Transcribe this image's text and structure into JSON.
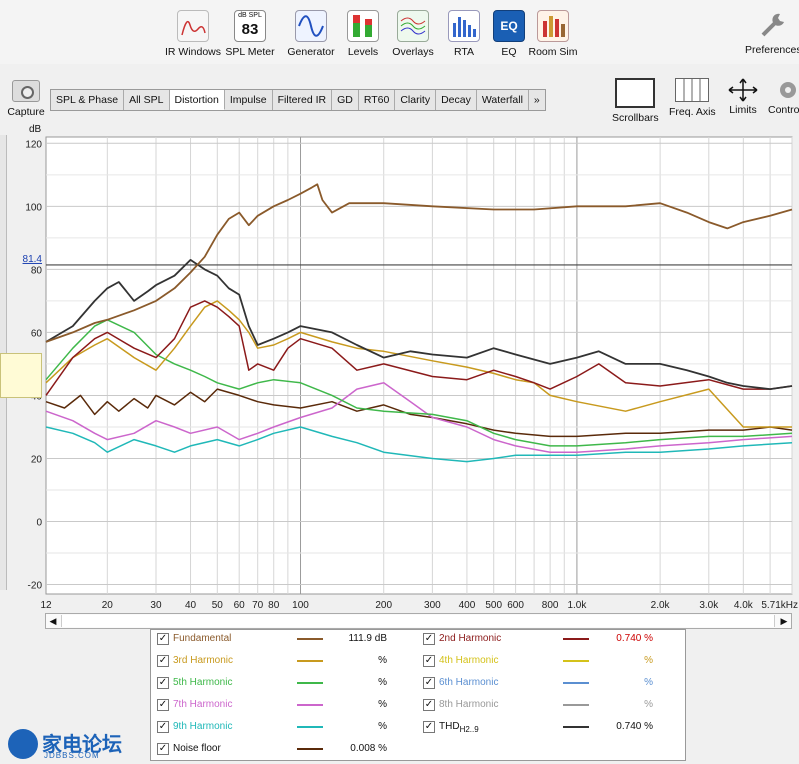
{
  "toolbar": {
    "tools": [
      {
        "label": "IR Windows",
        "icon": "ir-windows-icon"
      },
      {
        "label": "SPL Meter",
        "icon": "spl-meter-icon",
        "meter_unit": "dB SPL",
        "meter_value": "83"
      },
      {
        "label": "Generator",
        "icon": "sine-wave-icon"
      },
      {
        "label": "Levels",
        "icon": "level-bars-icon"
      },
      {
        "label": "Overlays",
        "icon": "overlays-icon"
      },
      {
        "label": "RTA",
        "icon": "rta-icon"
      },
      {
        "label": "EQ",
        "icon": "eq-icon",
        "badge": "EQ"
      },
      {
        "label": "Room Sim",
        "icon": "room-sim-icon"
      }
    ],
    "preferences_label": "Preferences"
  },
  "capture_label": "Capture",
  "tabs": [
    {
      "label": "SPL & Phase"
    },
    {
      "label": "All SPL"
    },
    {
      "label": "Distortion",
      "active": true
    },
    {
      "label": "Impulse"
    },
    {
      "label": "Filtered IR"
    },
    {
      "label": "GD"
    },
    {
      "label": "RT60"
    },
    {
      "label": "Clarity"
    },
    {
      "label": "Decay"
    },
    {
      "label": "Waterfall"
    },
    {
      "label": "»"
    }
  ],
  "right_tools": {
    "scrollbars": "Scrollbars",
    "freq_axis": "Freq. Axis",
    "limits": "Limits",
    "controls": "Controls"
  },
  "chart_data": {
    "type": "line",
    "ylabel": "dB",
    "ylim": [
      -23,
      122
    ],
    "yticks": [
      120,
      100,
      80,
      60,
      40,
      20,
      0,
      -20
    ],
    "xscale": "log",
    "xlim": [
      12,
      6000
    ],
    "xtick_labels": [
      "12",
      "20",
      "30",
      "40",
      "50",
      "60",
      "70",
      "80",
      "100",
      "200",
      "300",
      "400",
      "500",
      "600",
      "800",
      "1.0k",
      "2.0k",
      "3.0k",
      "4.0k",
      "5.71kHz"
    ],
    "xtick_values": [
      12,
      20,
      30,
      40,
      50,
      60,
      70,
      80,
      100,
      200,
      300,
      400,
      500,
      600,
      800,
      1000,
      2000,
      3000,
      4000,
      5710
    ],
    "cursor_level": {
      "label": "81.4",
      "value": 81.4
    },
    "grid": true,
    "series": [
      {
        "name": "Fundamental",
        "color": "#8a5a2b",
        "points": [
          [
            12,
            57
          ],
          [
            15,
            60
          ],
          [
            18,
            63
          ],
          [
            20,
            64
          ],
          [
            25,
            67
          ],
          [
            30,
            70
          ],
          [
            35,
            74
          ],
          [
            40,
            79
          ],
          [
            45,
            84
          ],
          [
            50,
            91
          ],
          [
            55,
            96
          ],
          [
            60,
            98
          ],
          [
            65,
            94
          ],
          [
            70,
            97
          ],
          [
            80,
            100
          ],
          [
            90,
            102
          ],
          [
            100,
            104
          ],
          [
            110,
            106
          ],
          [
            115,
            107
          ],
          [
            120,
            102
          ],
          [
            130,
            98
          ],
          [
            150,
            101
          ],
          [
            200,
            101
          ],
          [
            300,
            100
          ],
          [
            500,
            99
          ],
          [
            700,
            99
          ],
          [
            1000,
            100
          ],
          [
            1500,
            100
          ],
          [
            2000,
            101
          ],
          [
            2500,
            98
          ],
          [
            3000,
            95
          ],
          [
            3500,
            93
          ],
          [
            4000,
            95
          ],
          [
            5000,
            97
          ],
          [
            6000,
            99
          ]
        ]
      },
      {
        "name": "2nd Harmonic",
        "color": "#8b1a1a",
        "points": [
          [
            12,
            40
          ],
          [
            15,
            52
          ],
          [
            18,
            58
          ],
          [
            20,
            60
          ],
          [
            25,
            55
          ],
          [
            30,
            52
          ],
          [
            35,
            58
          ],
          [
            40,
            68
          ],
          [
            45,
            70
          ],
          [
            50,
            68
          ],
          [
            55,
            65
          ],
          [
            60,
            62
          ],
          [
            65,
            48
          ],
          [
            70,
            50
          ],
          [
            80,
            48
          ],
          [
            90,
            55
          ],
          [
            100,
            58
          ],
          [
            130,
            55
          ],
          [
            160,
            48
          ],
          [
            200,
            50
          ],
          [
            300,
            46
          ],
          [
            400,
            45
          ],
          [
            500,
            48
          ],
          [
            600,
            46
          ],
          [
            700,
            44
          ],
          [
            800,
            42
          ],
          [
            1000,
            46
          ],
          [
            1200,
            50
          ],
          [
            1500,
            44
          ],
          [
            2000,
            43
          ],
          [
            3000,
            45
          ],
          [
            4000,
            42
          ],
          [
            5000,
            42
          ],
          [
            6000,
            43
          ]
        ]
      },
      {
        "name": "3rd Harmonic",
        "color": "#c89a1e",
        "points": [
          [
            12,
            44
          ],
          [
            15,
            52
          ],
          [
            18,
            56
          ],
          [
            20,
            58
          ],
          [
            25,
            52
          ],
          [
            30,
            48
          ],
          [
            35,
            55
          ],
          [
            40,
            62
          ],
          [
            45,
            68
          ],
          [
            50,
            70
          ],
          [
            55,
            67
          ],
          [
            60,
            64
          ],
          [
            65,
            60
          ],
          [
            70,
            55
          ],
          [
            80,
            56
          ],
          [
            90,
            58
          ],
          [
            100,
            60
          ],
          [
            130,
            57
          ],
          [
            160,
            55
          ],
          [
            200,
            54
          ],
          [
            300,
            51
          ],
          [
            400,
            49
          ],
          [
            500,
            47
          ],
          [
            600,
            45
          ],
          [
            700,
            44
          ],
          [
            800,
            40
          ],
          [
            1000,
            38
          ],
          [
            1500,
            35
          ],
          [
            2000,
            38
          ],
          [
            3000,
            42
          ],
          [
            4000,
            30
          ],
          [
            5000,
            30
          ],
          [
            6000,
            30
          ]
        ]
      },
      {
        "name": "5th Harmonic",
        "color": "#3fb84a",
        "points": [
          [
            12,
            45
          ],
          [
            15,
            55
          ],
          [
            18,
            62
          ],
          [
            20,
            64
          ],
          [
            25,
            60
          ],
          [
            30,
            53
          ],
          [
            35,
            50
          ],
          [
            40,
            48
          ],
          [
            45,
            46
          ],
          [
            50,
            44
          ],
          [
            60,
            42
          ],
          [
            70,
            44
          ],
          [
            80,
            45
          ],
          [
            100,
            44
          ],
          [
            130,
            40
          ],
          [
            160,
            36
          ],
          [
            200,
            35
          ],
          [
            300,
            34
          ],
          [
            400,
            32
          ],
          [
            500,
            28
          ],
          [
            600,
            26
          ],
          [
            800,
            24
          ],
          [
            1000,
            24
          ],
          [
            1500,
            25
          ],
          [
            2000,
            26
          ],
          [
            3000,
            27
          ],
          [
            4000,
            27
          ],
          [
            6000,
            28
          ]
        ]
      },
      {
        "name": "7th Harmonic",
        "color": "#cc66cc",
        "points": [
          [
            12,
            35
          ],
          [
            15,
            32
          ],
          [
            18,
            28
          ],
          [
            20,
            26
          ],
          [
            25,
            28
          ],
          [
            30,
            32
          ],
          [
            35,
            30
          ],
          [
            40,
            28
          ],
          [
            50,
            30
          ],
          [
            60,
            26
          ],
          [
            70,
            28
          ],
          [
            80,
            30
          ],
          [
            100,
            33
          ],
          [
            130,
            36
          ],
          [
            160,
            42
          ],
          [
            200,
            44
          ],
          [
            250,
            38
          ],
          [
            300,
            33
          ],
          [
            400,
            30
          ],
          [
            500,
            26
          ],
          [
            600,
            24
          ],
          [
            800,
            22
          ],
          [
            1000,
            22
          ],
          [
            1500,
            23
          ],
          [
            2000,
            24
          ],
          [
            3000,
            25
          ],
          [
            4000,
            26
          ],
          [
            6000,
            27
          ]
        ]
      },
      {
        "name": "9th Harmonic",
        "color": "#20b8b8",
        "points": [
          [
            12,
            30
          ],
          [
            15,
            28
          ],
          [
            18,
            25
          ],
          [
            20,
            22
          ],
          [
            25,
            26
          ],
          [
            30,
            24
          ],
          [
            35,
            22
          ],
          [
            40,
            24
          ],
          [
            50,
            26
          ],
          [
            60,
            24
          ],
          [
            70,
            26
          ],
          [
            80,
            28
          ],
          [
            100,
            30
          ],
          [
            130,
            27
          ],
          [
            160,
            25
          ],
          [
            200,
            22
          ],
          [
            300,
            20
          ],
          [
            400,
            19
          ],
          [
            500,
            20
          ],
          [
            600,
            21
          ],
          [
            800,
            21
          ],
          [
            1000,
            21
          ],
          [
            1500,
            22
          ],
          [
            2000,
            22
          ],
          [
            3000,
            23
          ],
          [
            4000,
            24
          ],
          [
            6000,
            25
          ]
        ]
      },
      {
        "name": "Noise floor",
        "color": "#5a2a0a",
        "points": [
          [
            12,
            38
          ],
          [
            14,
            36
          ],
          [
            16,
            40
          ],
          [
            18,
            34
          ],
          [
            20,
            38
          ],
          [
            22,
            35
          ],
          [
            25,
            39
          ],
          [
            28,
            36
          ],
          [
            30,
            40
          ],
          [
            35,
            37
          ],
          [
            40,
            41
          ],
          [
            45,
            38
          ],
          [
            50,
            42
          ],
          [
            60,
            40
          ],
          [
            70,
            38
          ],
          [
            80,
            37
          ],
          [
            100,
            36
          ],
          [
            130,
            38
          ],
          [
            160,
            35
          ],
          [
            200,
            37
          ],
          [
            250,
            34
          ],
          [
            300,
            33
          ],
          [
            400,
            31
          ],
          [
            500,
            29
          ],
          [
            600,
            28
          ],
          [
            800,
            27
          ],
          [
            1000,
            27
          ],
          [
            1500,
            28
          ],
          [
            2000,
            28
          ],
          [
            3000,
            29
          ],
          [
            4000,
            29
          ],
          [
            5000,
            30
          ],
          [
            6000,
            29
          ]
        ]
      },
      {
        "name": "THD H2..9",
        "color": "#333333",
        "points": [
          [
            12,
            57
          ],
          [
            15,
            62
          ],
          [
            18,
            70
          ],
          [
            20,
            74
          ],
          [
            22,
            76
          ],
          [
            25,
            70
          ],
          [
            28,
            73
          ],
          [
            30,
            75
          ],
          [
            35,
            78
          ],
          [
            40,
            83
          ],
          [
            45,
            80
          ],
          [
            50,
            78
          ],
          [
            55,
            74
          ],
          [
            60,
            72
          ],
          [
            65,
            62
          ],
          [
            70,
            56
          ],
          [
            80,
            58
          ],
          [
            90,
            60
          ],
          [
            100,
            62
          ],
          [
            130,
            60
          ],
          [
            160,
            56
          ],
          [
            200,
            52
          ],
          [
            250,
            54
          ],
          [
            300,
            53
          ],
          [
            400,
            52
          ],
          [
            500,
            55
          ],
          [
            600,
            53
          ],
          [
            800,
            50
          ],
          [
            1000,
            52
          ],
          [
            1200,
            54
          ],
          [
            1500,
            50
          ],
          [
            2000,
            50
          ],
          [
            2500,
            48
          ],
          [
            3000,
            46
          ],
          [
            3500,
            44
          ],
          [
            4000,
            43
          ],
          [
            5000,
            42
          ],
          [
            6000,
            43
          ]
        ]
      }
    ]
  },
  "legend": {
    "left": [
      {
        "name": "Fundamental",
        "color": "#8a5a2b",
        "value": "111.9 dB"
      },
      {
        "name": "3rd Harmonic",
        "color": "#c89a1e",
        "value": "%"
      },
      {
        "name": "5th Harmonic",
        "color": "#3fb84a",
        "value": "%"
      },
      {
        "name": "7th Harmonic",
        "color": "#cc66cc",
        "value": "%"
      },
      {
        "name": "9th Harmonic",
        "color": "#20b8b8",
        "value": "%"
      },
      {
        "name": "Noise floor",
        "color": "#5a2a0a",
        "value": "0.008 %"
      }
    ],
    "right": [
      {
        "name": "2nd Harmonic",
        "color": "#8b1a1a",
        "value": "0.740 %"
      },
      {
        "name": "4th Harmonic",
        "color": "#d4c21a",
        "value": "%"
      },
      {
        "name": "6th Harmonic",
        "color": "#5b8fd1",
        "value": "%"
      },
      {
        "name": "8th Harmonic",
        "color": "#999999",
        "value": "%"
      },
      {
        "name": "THD",
        "subscript": "H2..9",
        "color": "#333333",
        "value": "0.740 %"
      }
    ]
  },
  "watermark": {
    "text": "家电论坛",
    "sub": "JDBBS.COM"
  }
}
